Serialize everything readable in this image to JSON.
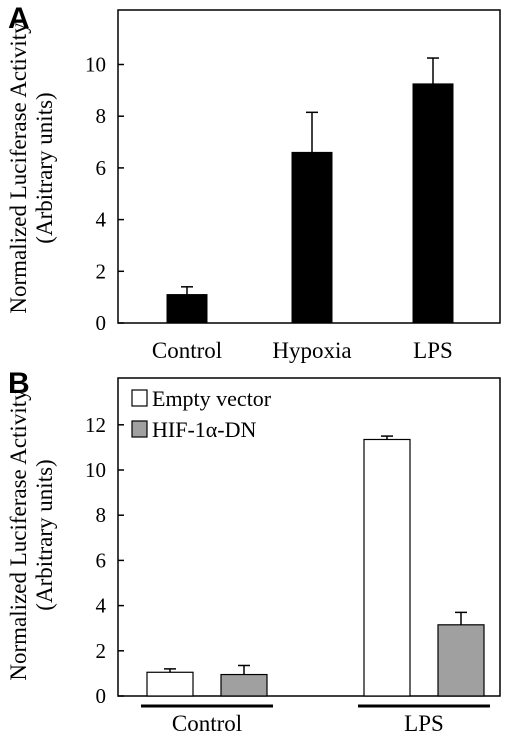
{
  "chart_data": [
    {
      "type": "bar",
      "panel_label": "A",
      "categories": [
        "Control",
        "Hypoxia",
        "LPS"
      ],
      "values": [
        1.1,
        6.6,
        9.25
      ],
      "errors": [
        0.3,
        1.55,
        1.0
      ],
      "bar_color": "#000000",
      "ylabel_line1": "Normalized Luciferase Activity",
      "ylabel_line2": "(Arbitrary units)",
      "ylim": [
        0,
        12
      ],
      "yticks": [
        "0",
        "2",
        "4",
        "6",
        "8",
        "10"
      ],
      "grid": false
    },
    {
      "type": "bar",
      "panel_label": "B",
      "categories": [
        "Control",
        "LPS"
      ],
      "series": [
        {
          "name": "Empty vector",
          "values": [
            1.05,
            11.35
          ],
          "errors": [
            0.15,
            0.15
          ],
          "color": "#ffffff"
        },
        {
          "name": "HIF-1α-DN",
          "values": [
            0.95,
            3.15
          ],
          "errors": [
            0.4,
            0.55
          ],
          "color": "#a0a0a0"
        }
      ],
      "ylabel_line1": "Normalized Luciferase Activity",
      "ylabel_line2": "(Arbitrary units)",
      "ylim": [
        0,
        13.5
      ],
      "yticks": [
        "0",
        "2",
        "4",
        "6",
        "8",
        "10",
        "12"
      ],
      "legend_position": "top-left",
      "grid": false
    }
  ]
}
